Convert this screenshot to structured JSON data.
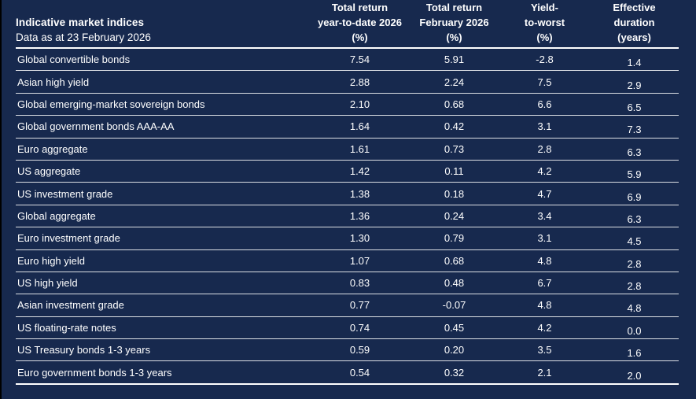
{
  "colors": {
    "background": "#17294E",
    "text": "#FFFFFF",
    "divider": "#FFFFFF"
  },
  "table": {
    "title": "Indicative market indices",
    "subtitle": "Data as at 23 February 2026",
    "columns": [
      {
        "id": "total-return-ytd",
        "lines": [
          "Total return",
          "year-to-date 2026",
          "(%)"
        ]
      },
      {
        "id": "total-return-feb",
        "lines": [
          "Total return",
          "February 2026",
          "(%)"
        ]
      },
      {
        "id": "yield-to-worst",
        "lines": [
          "Yield-",
          "to-worst",
          "(%)"
        ]
      },
      {
        "id": "effective-duration",
        "lines": [
          "Effective",
          "duration",
          "(years)"
        ]
      }
    ],
    "rows": [
      {
        "index": "Global convertible bonds",
        "total_return_ytd": "7.54",
        "total_return_feb": "5.91",
        "yield_to_worst": "-2.8",
        "duration": "1.4"
      },
      {
        "index": "Asian high yield",
        "total_return_ytd": "2.88",
        "total_return_feb": "2.24",
        "yield_to_worst": "7.5",
        "duration": "2.9"
      },
      {
        "index": "Global emerging-market sovereign bonds",
        "total_return_ytd": "2.10",
        "total_return_feb": "0.68",
        "yield_to_worst": "6.6",
        "duration": "6.5"
      },
      {
        "index": "Global government bonds AAA-AA",
        "total_return_ytd": "1.64",
        "total_return_feb": "0.42",
        "yield_to_worst": "3.1",
        "duration": "7.3"
      },
      {
        "index": "Euro aggregate",
        "total_return_ytd": "1.61",
        "total_return_feb": "0.73",
        "yield_to_worst": "2.8",
        "duration": "6.3"
      },
      {
        "index": "US aggregate",
        "total_return_ytd": "1.42",
        "total_return_feb": "0.11",
        "yield_to_worst": "4.2",
        "duration": "5.9"
      },
      {
        "index": "US investment grade",
        "total_return_ytd": "1.38",
        "total_return_feb": "0.18",
        "yield_to_worst": "4.7",
        "duration": "6.9"
      },
      {
        "index": "Global aggregate",
        "total_return_ytd": "1.36",
        "total_return_feb": "0.24",
        "yield_to_worst": "3.4",
        "duration": "6.3"
      },
      {
        "index": "Euro investment grade",
        "total_return_ytd": "1.30",
        "total_return_feb": "0.79",
        "yield_to_worst": "3.1",
        "duration": "4.5"
      },
      {
        "index": "Euro high yield",
        "total_return_ytd": "1.07",
        "total_return_feb": "0.68",
        "yield_to_worst": "4.8",
        "duration": "2.8"
      },
      {
        "index": "US high yield",
        "total_return_ytd": "0.83",
        "total_return_feb": "0.48",
        "yield_to_worst": "6.7",
        "duration": "2.8"
      },
      {
        "index": "Asian investment grade",
        "total_return_ytd": "0.77",
        "total_return_feb": "-0.07",
        "yield_to_worst": "4.8",
        "duration": "4.8"
      },
      {
        "index": "US floating-rate notes",
        "total_return_ytd": "0.74",
        "total_return_feb": "0.45",
        "yield_to_worst": "4.2",
        "duration": "0.0"
      },
      {
        "index": "US Treasury bonds 1-3 years",
        "total_return_ytd": "0.59",
        "total_return_feb": "0.20",
        "yield_to_worst": "3.5",
        "duration": "1.6"
      },
      {
        "index": "Euro government bonds 1-3 years",
        "total_return_ytd": "0.54",
        "total_return_feb": "0.32",
        "yield_to_worst": "2.1",
        "duration": "2.0"
      }
    ]
  }
}
